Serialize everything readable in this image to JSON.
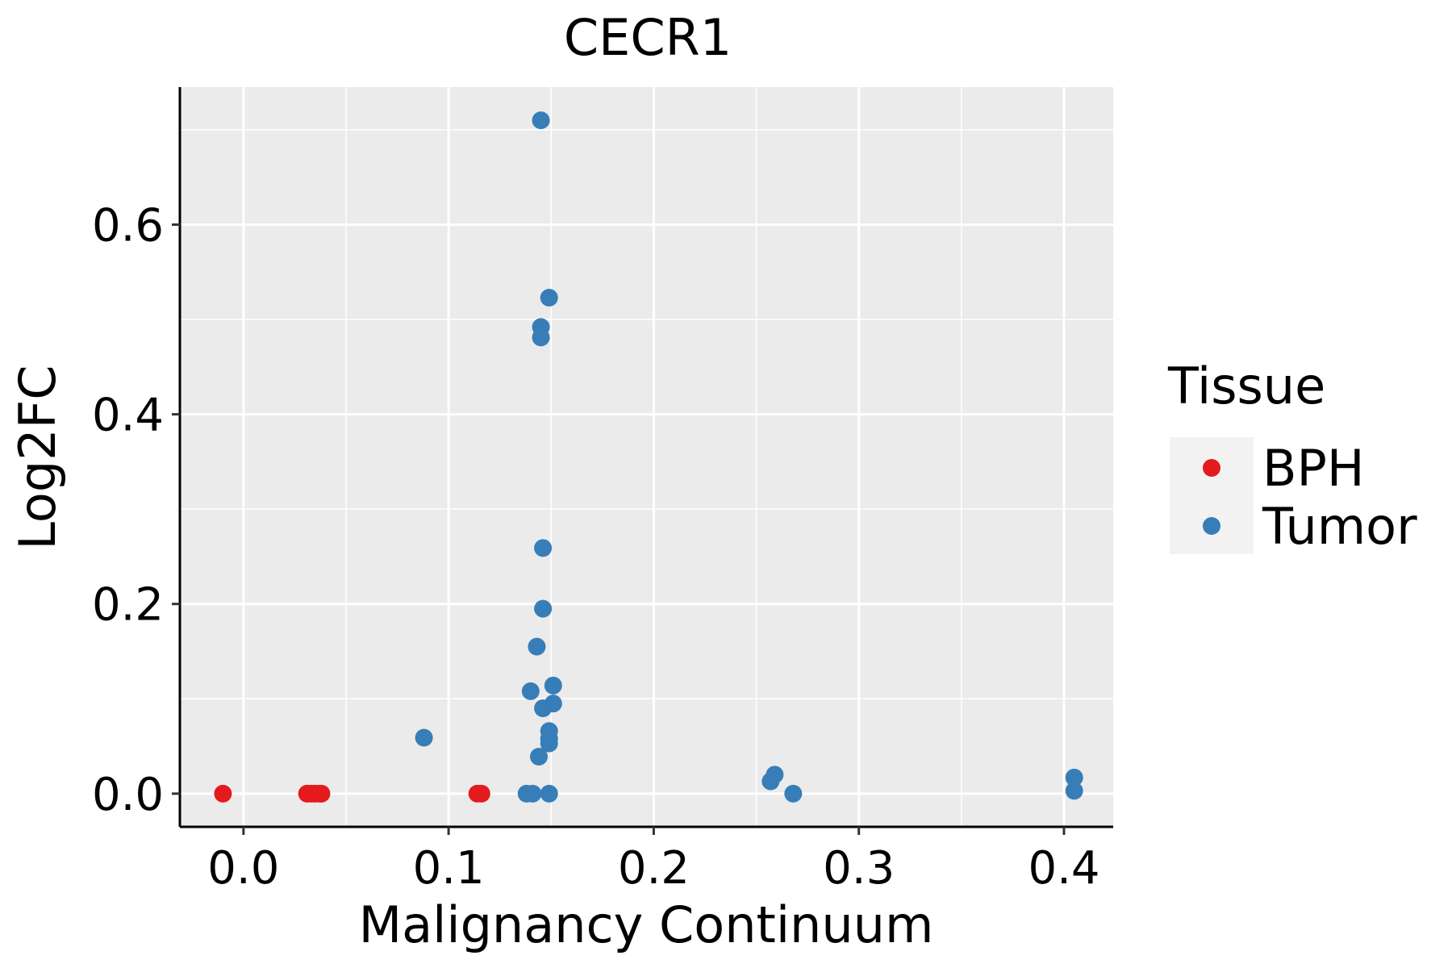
{
  "chart_data": {
    "type": "scatter",
    "title": "CECR1",
    "xlabel": "Malignancy Continuum",
    "ylabel": "Log2FC",
    "xlim": [
      -0.031,
      0.424
    ],
    "ylim": [
      -0.035,
      0.745
    ],
    "xticks": [
      0.0,
      0.1,
      0.2,
      0.3,
      0.4
    ],
    "xtick_labels": [
      "0.0",
      "0.1",
      "0.2",
      "0.3",
      "0.4"
    ],
    "yticks": [
      0.0,
      0.2,
      0.4,
      0.6
    ],
    "ytick_labels": [
      "0.0",
      "0.2",
      "0.4",
      "0.6"
    ],
    "grid": true,
    "legend": {
      "title": "Tissue",
      "placement": "right",
      "entries": [
        {
          "label": "BPH",
          "color": "#E41A1C"
        },
        {
          "label": "Tumor",
          "color": "#377EB8"
        }
      ]
    },
    "series": [
      {
        "name": "BPH",
        "color": "#E41A1C",
        "points": [
          {
            "x": -0.01,
            "y": 0.0
          },
          {
            "x": 0.031,
            "y": 0.0
          },
          {
            "x": 0.033,
            "y": 0.0
          },
          {
            "x": 0.035,
            "y": 0.0
          },
          {
            "x": 0.037,
            "y": 0.0
          },
          {
            "x": 0.038,
            "y": 0.0
          },
          {
            "x": 0.114,
            "y": 0.0
          },
          {
            "x": 0.116,
            "y": 0.0
          }
        ]
      },
      {
        "name": "Tumor",
        "color": "#377EB8",
        "points": [
          {
            "x": 0.145,
            "y": 0.71
          },
          {
            "x": 0.149,
            "y": 0.523
          },
          {
            "x": 0.145,
            "y": 0.492
          },
          {
            "x": 0.145,
            "y": 0.481
          },
          {
            "x": 0.146,
            "y": 0.259
          },
          {
            "x": 0.146,
            "y": 0.195
          },
          {
            "x": 0.143,
            "y": 0.155
          },
          {
            "x": 0.151,
            "y": 0.114
          },
          {
            "x": 0.14,
            "y": 0.108
          },
          {
            "x": 0.151,
            "y": 0.095
          },
          {
            "x": 0.146,
            "y": 0.09
          },
          {
            "x": 0.149,
            "y": 0.066
          },
          {
            "x": 0.088,
            "y": 0.059
          },
          {
            "x": 0.149,
            "y": 0.058
          },
          {
            "x": 0.149,
            "y": 0.053
          },
          {
            "x": 0.144,
            "y": 0.039
          },
          {
            "x": 0.138,
            "y": 0.0
          },
          {
            "x": 0.141,
            "y": 0.0
          },
          {
            "x": 0.149,
            "y": 0.0
          },
          {
            "x": 0.259,
            "y": 0.02
          },
          {
            "x": 0.257,
            "y": 0.013
          },
          {
            "x": 0.268,
            "y": 0.0
          },
          {
            "x": 0.405,
            "y": 0.017
          },
          {
            "x": 0.405,
            "y": 0.003
          }
        ]
      }
    ]
  }
}
